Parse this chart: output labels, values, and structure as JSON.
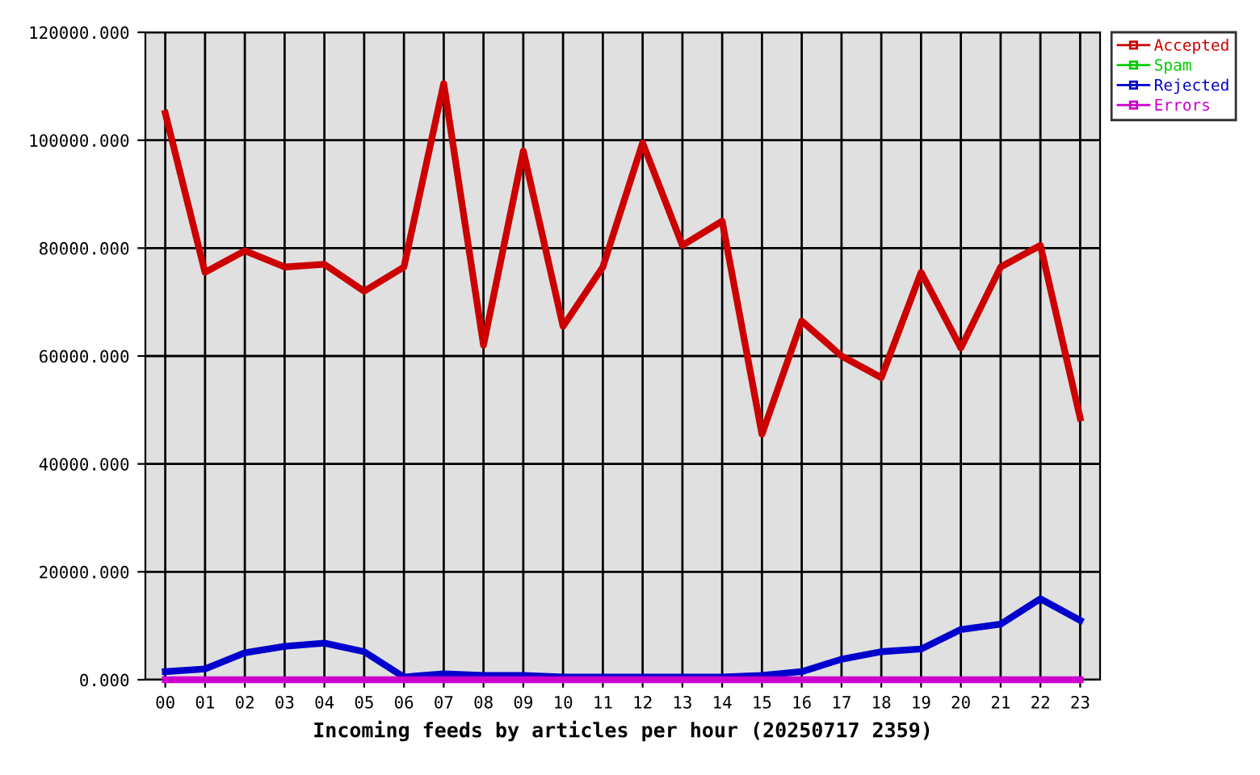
{
  "chart_data": {
    "type": "line",
    "xlabel": "Incoming feeds by articles per hour (20250717 2359)",
    "categories": [
      "00",
      "01",
      "02",
      "03",
      "04",
      "05",
      "06",
      "07",
      "08",
      "09",
      "10",
      "11",
      "12",
      "13",
      "14",
      "15",
      "16",
      "17",
      "18",
      "19",
      "20",
      "21",
      "22",
      "23"
    ],
    "series": [
      {
        "name": "Accepted",
        "color": "#cc0000",
        "values": [
          105000,
          75500,
          79500,
          76500,
          77000,
          72000,
          76500,
          110500,
          62000,
          98000,
          65500,
          76500,
          99500,
          80500,
          85000,
          45500,
          66500,
          60000,
          56000,
          75500,
          61500,
          76500,
          80500,
          48500
        ]
      },
      {
        "name": "Spam",
        "color": "#00cc00",
        "values": [
          null,
          null,
          null,
          null,
          null,
          null,
          null,
          null,
          null,
          null,
          null,
          null,
          null,
          null,
          null,
          null,
          null,
          null,
          null,
          null,
          null,
          null,
          null,
          null
        ]
      },
      {
        "name": "Rejected",
        "color": "#0000cc",
        "values": [
          1500,
          2000,
          5000,
          6200,
          6800,
          5200,
          500,
          1100,
          800,
          800,
          500,
          500,
          500,
          500,
          500,
          800,
          1500,
          3800,
          5200,
          5700,
          9300,
          10300,
          15000,
          11000
        ]
      },
      {
        "name": "Errors",
        "color": "#cc00cc",
        "values": [
          0,
          0,
          0,
          0,
          0,
          0,
          0,
          0,
          0,
          0,
          0,
          0,
          0,
          0,
          0,
          0,
          0,
          0,
          0,
          0,
          0,
          0,
          0,
          0
        ]
      }
    ],
    "ylim": [
      0,
      120000
    ],
    "yticks": [
      {
        "value": 0,
        "label": "0.000"
      },
      {
        "value": 20000,
        "label": "20000.000"
      },
      {
        "value": 40000,
        "label": "40000.000"
      },
      {
        "value": 60000,
        "label": "60000.000"
      },
      {
        "value": 80000,
        "label": "80000.000"
      },
      {
        "value": 100000,
        "label": "100000.000"
      },
      {
        "value": 120000,
        "label": "120000.000"
      }
    ],
    "grid": true,
    "legend": "top right",
    "marker": "none",
    "line_style": "solid"
  }
}
